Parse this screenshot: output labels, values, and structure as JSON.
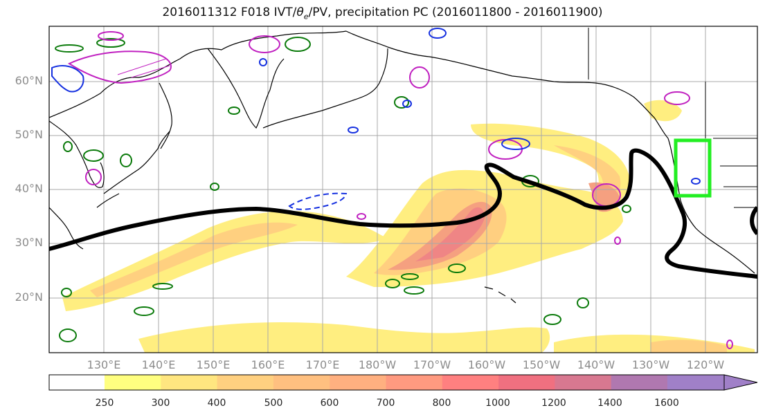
{
  "title": {
    "prefix": "2016011312 F018 IVT/",
    "theta": "θ",
    "sub": "e",
    "suffix": "/PV, precipitation PC (2016011800 - 2016011900)"
  },
  "lat_labels": [
    "60°N",
    "50°N",
    "40°N",
    "30°N",
    "20°N"
  ],
  "lon_labels": [
    "130°E",
    "140°E",
    "150°E",
    "160°E",
    "170°E",
    "180°W",
    "170°W",
    "160°W",
    "150°W",
    "140°W",
    "130°W",
    "120°W"
  ],
  "colorbar": {
    "labels": [
      "250",
      "300",
      "400",
      "500",
      "600",
      "700",
      "800",
      "1000",
      "1200",
      "1400",
      "1600"
    ],
    "colors": [
      "#ffff80",
      "#ffe680",
      "#ffd080",
      "#ffc080",
      "#ffb080",
      "#ff9a80",
      "#ff8080",
      "#f07080",
      "#d87890",
      "#b078b0",
      "#a080c8"
    ]
  },
  "colors": {
    "ivt_fill": "#ffe57a",
    "ivt_core": "#f08c8c",
    "dynamic_tropopause_line": "#000000",
    "green_contours": "#0a7a0a",
    "magenta_contours": "#c020c0",
    "blue_contours": "#1530e0",
    "target_box": "#22ee22"
  },
  "map_region": {
    "projection": "cylindrical",
    "lon_range": "120°E to 110°W",
    "lat_range": "10°N to 70°N",
    "graticule": true
  }
}
